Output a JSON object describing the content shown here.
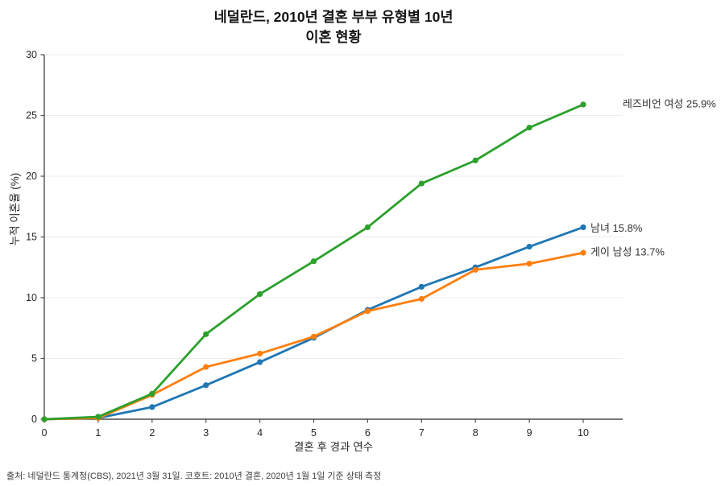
{
  "title": {
    "line1": "네덜란드, 2010년 결혼 부부 유형별 10년",
    "line2": "이혼 현황"
  },
  "footer": {
    "source": "출처: 네덜란드 통계청(CBS), 2021년 3월 31일. 코호트: 2010년 결혼, 2020년 1월 1일 기준 상태 측정"
  },
  "chart_data": {
    "type": "line",
    "title": "네덜란드, 2010년 결혼 부부 유형별 10년 이혼 현황",
    "title_lines": [
      "네덜란드, 2010년 결혼 부부 유형별 10년",
      "이혼 현황"
    ],
    "xlabel": "결혼 후 경과 연수",
    "ylabel": "누적 이혼율 (%)",
    "x": [
      0,
      1,
      2,
      3,
      4,
      5,
      6,
      7,
      8,
      9,
      10
    ],
    "xticks": [
      0,
      1,
      2,
      3,
      4,
      5,
      6,
      7,
      8,
      9,
      10
    ],
    "yticks": [
      0,
      5,
      10,
      15,
      20,
      25,
      30
    ],
    "xlim": [
      0,
      10
    ],
    "ylim": [
      0,
      30
    ],
    "grid": "horizontal",
    "grid_color": "#ececec",
    "axis_color": "#4c4c4c",
    "legend_position": "end-of-line annotations (right of last point)",
    "series": [
      {
        "name": "레즈비언 여성",
        "label": "레즈비언 여성 25.9%",
        "final_value": 25.9,
        "color": "#2ca02c",
        "values": [
          0,
          0.2,
          2.1,
          7.0,
          10.3,
          13.0,
          15.8,
          19.4,
          21.3,
          24.0,
          25.9
        ],
        "z": 3,
        "label_dx": 49,
        "label_dy": -1
      },
      {
        "name": "남녀",
        "label": "남녀 15.8%",
        "final_value": 15.8,
        "color": "#1f77b4",
        "values": [
          0,
          0.1,
          1.0,
          2.8,
          4.7,
          6.7,
          9.0,
          10.9,
          12.5,
          14.2,
          15.8
        ],
        "z": 1,
        "label_dx": 9,
        "label_dy": 1
      },
      {
        "name": "게이 남성",
        "label": "게이 남성 13.7%",
        "final_value": 13.7,
        "color": "#ff7f0e",
        "values": [
          0,
          0.1,
          2.0,
          4.3,
          5.4,
          6.8,
          8.9,
          9.9,
          12.3,
          12.8,
          13.7
        ],
        "z": 2,
        "label_dx": 9,
        "label_dy": -1
      }
    ]
  }
}
